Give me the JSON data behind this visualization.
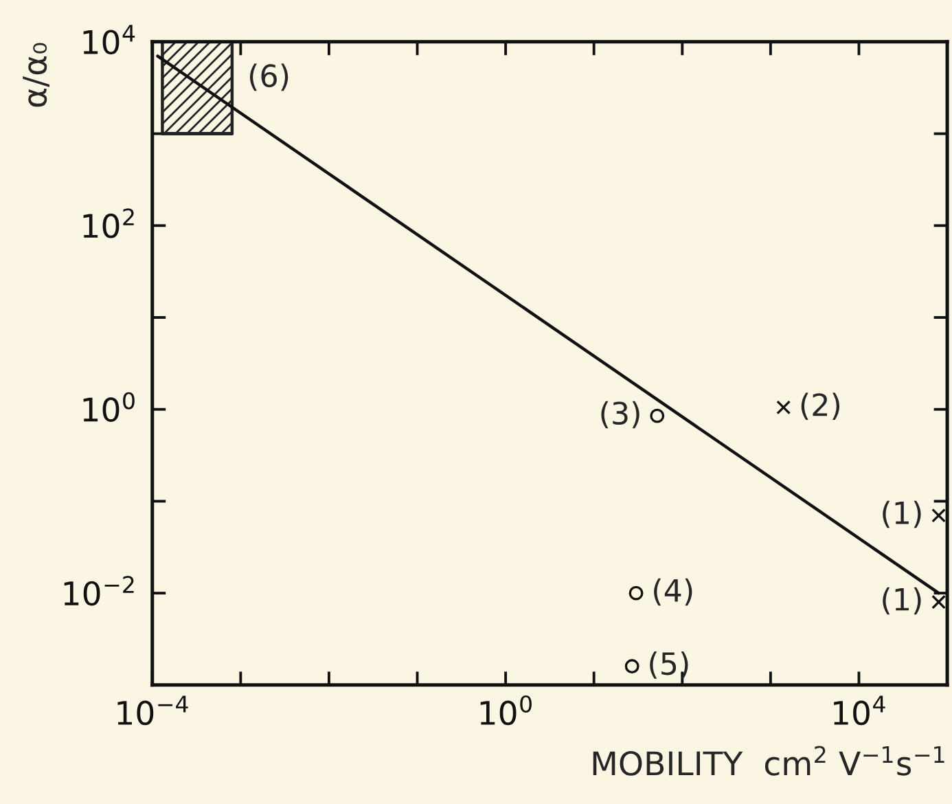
{
  "chart_data": {
    "type": "scatter",
    "xlabel": "MOBILITY  cm$^{2}$ V$^{−1}$s$^{−1}$",
    "ylabel": "α/α₀",
    "log": "xy",
    "xlim": [
      0.0001,
      100000
    ],
    "ylim": [
      0.001,
      10000
    ],
    "xticks": [
      {
        "value": 0.0001,
        "label": "10$^{−4}$"
      },
      {
        "value": 0.001,
        "label": null
      },
      {
        "value": 0.01,
        "label": null
      },
      {
        "value": 0.1,
        "label": null
      },
      {
        "value": 1,
        "label": "10$^{0}$"
      },
      {
        "value": 10,
        "label": null
      },
      {
        "value": 100,
        "label": null
      },
      {
        "value": 1000,
        "label": null
      },
      {
        "value": 10000,
        "label": "10$^{4}$"
      },
      {
        "value": 100000,
        "label": null
      }
    ],
    "yticks": [
      {
        "value": 0.001,
        "label": null
      },
      {
        "value": 0.01,
        "label": "10$^{−2}$"
      },
      {
        "value": 0.1,
        "label": null
      },
      {
        "value": 1,
        "label": "10$^{0}$"
      },
      {
        "value": 10,
        "label": null
      },
      {
        "value": 100,
        "label": "10$^{2}$"
      },
      {
        "value": 1000,
        "label": null
      },
      {
        "value": 10000,
        "label": "10$^{4}$"
      }
    ],
    "grid": false,
    "legend": false,
    "series": [
      {
        "type": "line",
        "color": "#222222",
        "x": [
          0.00013,
          0.0008
        ],
        "values": [
          1000,
          1000
        ],
        "lower": [
          1000,
          1000
        ],
        "upper": [
          10000,
          10000
        ]
      },
      {
        "type": "line",
        "color": "#111111",
        "x": [
          0.000115,
          80000
        ],
        "values": [
          7000,
          0.01
        ],
        "marker": "none",
        "line_style": "solid"
      },
      {
        "color": "#111111",
        "marker": "cross",
        "x": [
          1400,
          80000,
          80000
        ],
        "values": [
          1.05,
          0.07,
          0.008
        ]
      },
      {
        "color": "#111111",
        "marker": "circle",
        "x": [
          52,
          30,
          27
        ],
        "values": [
          0.85,
          0.01,
          0.0016
        ]
      }
    ],
    "annotations": [
      {
        "text": "(6)",
        "x": 0.0008,
        "y": 4000
      },
      {
        "text": "(2)",
        "x": 1400,
        "y": 1.05
      },
      {
        "text": "(3)",
        "x": 52,
        "y": 0.85
      },
      {
        "text": "(1)",
        "x": 80000,
        "y": 0.07
      },
      {
        "text": "(1)",
        "x": 80000,
        "y": 0.008
      },
      {
        "text": "(4)",
        "x": 30,
        "y": 0.01
      },
      {
        "text": "(5)",
        "x": 27,
        "y": 0.0016
      }
    ]
  }
}
